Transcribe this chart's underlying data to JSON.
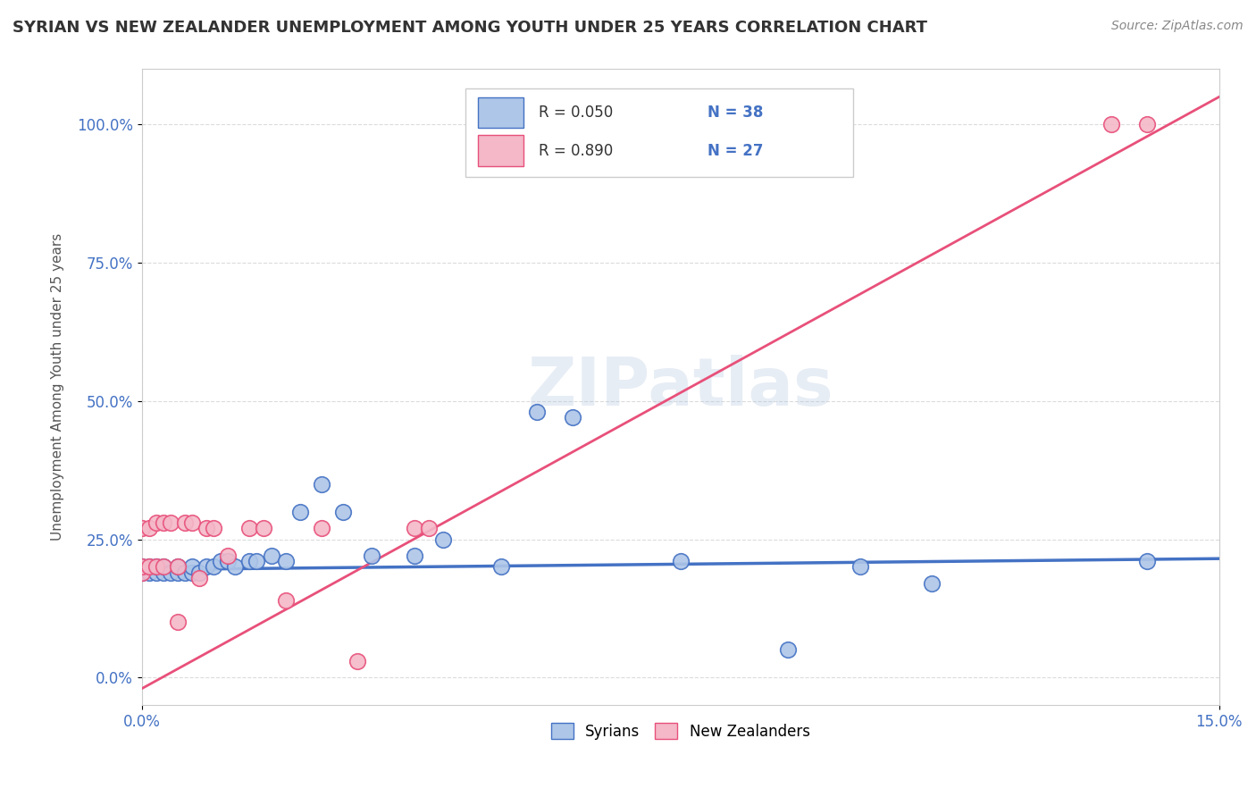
{
  "title": "SYRIAN VS NEW ZEALANDER UNEMPLOYMENT AMONG YOUTH UNDER 25 YEARS CORRELATION CHART",
  "source": "Source: ZipAtlas.com",
  "ylabel": "Unemployment Among Youth under 25 years",
  "xlim": [
    0.0,
    0.15
  ],
  "ylim": [
    -0.05,
    1.1
  ],
  "yticks": [
    0.0,
    0.25,
    0.5,
    0.75,
    1.0
  ],
  "ytick_labels": [
    "0.0%",
    "25.0%",
    "50.0%",
    "75.0%",
    "100.0%"
  ],
  "xtick_positions": [
    0.0,
    0.15
  ],
  "xtick_labels_visible": [
    "0.0%",
    "15.0%"
  ],
  "footer_labels": [
    "Syrians",
    "New Zealanders"
  ],
  "footer_colors": [
    "#aec6e8",
    "#f4b8c8"
  ],
  "syrian_line_color": "#4472c4",
  "nz_line_color": "#e8507a",
  "syrian_dot_color": "#aec6e8",
  "nz_dot_color": "#f4b8c8",
  "syrian_dot_edge_color": "#4472c4",
  "nz_dot_edge_color": "#e8507a",
  "syrian_R": 0.05,
  "nz_R": 0.89,
  "syrian_N": 38,
  "nz_N": 27,
  "watermark": "ZIPatlas",
  "background_color": "#ffffff",
  "grid_color": "#cccccc",
  "legend_R_color": "#4472c4",
  "legend_N_color": "#4472c4",
  "syrian_scatter_x": [
    0.0,
    0.0,
    0.001,
    0.001,
    0.002,
    0.002,
    0.003,
    0.003,
    0.004,
    0.005,
    0.005,
    0.006,
    0.007,
    0.007,
    0.008,
    0.009,
    0.01,
    0.011,
    0.012,
    0.013,
    0.015,
    0.016,
    0.018,
    0.02,
    0.022,
    0.025,
    0.028,
    0.032,
    0.038,
    0.042,
    0.05,
    0.055,
    0.06,
    0.075,
    0.09,
    0.1,
    0.11,
    0.14
  ],
  "syrian_scatter_y": [
    0.19,
    0.2,
    0.19,
    0.2,
    0.19,
    0.2,
    0.19,
    0.2,
    0.19,
    0.19,
    0.2,
    0.19,
    0.19,
    0.2,
    0.19,
    0.2,
    0.2,
    0.21,
    0.21,
    0.2,
    0.21,
    0.21,
    0.22,
    0.21,
    0.3,
    0.35,
    0.3,
    0.22,
    0.22,
    0.25,
    0.2,
    0.48,
    0.47,
    0.21,
    0.05,
    0.2,
    0.17,
    0.21
  ],
  "nz_scatter_x": [
    0.0,
    0.0,
    0.0,
    0.001,
    0.001,
    0.002,
    0.002,
    0.003,
    0.003,
    0.004,
    0.005,
    0.005,
    0.006,
    0.007,
    0.008,
    0.009,
    0.01,
    0.012,
    0.015,
    0.017,
    0.02,
    0.025,
    0.03,
    0.038,
    0.04,
    0.135,
    0.14
  ],
  "nz_scatter_y": [
    0.19,
    0.2,
    0.27,
    0.2,
    0.27,
    0.2,
    0.28,
    0.2,
    0.28,
    0.28,
    0.2,
    0.1,
    0.28,
    0.28,
    0.18,
    0.27,
    0.27,
    0.22,
    0.27,
    0.27,
    0.14,
    0.27,
    0.03,
    0.27,
    0.27,
    1.0,
    1.0
  ],
  "nz_line_x0": 0.0,
  "nz_line_y0": -0.02,
  "nz_line_x1": 0.15,
  "nz_line_y1": 1.05,
  "syr_line_x0": 0.0,
  "syr_line_y0": 0.195,
  "syr_line_x1": 0.15,
  "syr_line_y1": 0.215
}
